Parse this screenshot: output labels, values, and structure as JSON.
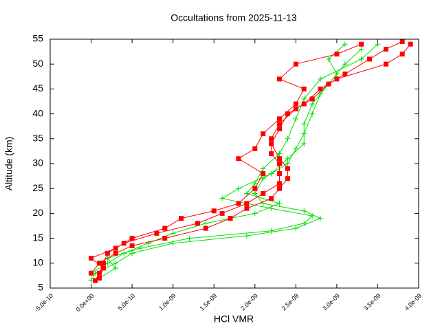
{
  "chart_data": {
    "type": "line",
    "title": "Occultations from 2025-11-13",
    "x_label": "HCl VMR",
    "y_label": "Altitude (km)",
    "xlim": [
      -5e-10,
      4e-09
    ],
    "xticks": [
      {
        "value": -5e-10,
        "label": "-5.0e-10"
      },
      {
        "value": 0,
        "label": "0.0e+00"
      },
      {
        "value": 5e-10,
        "label": "5.0e-10"
      },
      {
        "value": 1e-09,
        "label": "1.0e-09"
      },
      {
        "value": 1.5e-09,
        "label": "1.5e-09"
      },
      {
        "value": 2e-09,
        "label": "2.0e-09"
      },
      {
        "value": 2.5e-09,
        "label": "2.5e-09"
      },
      {
        "value": 3e-09,
        "label": "3.0e-09"
      },
      {
        "value": 3.5e-09,
        "label": "3.5e-09"
      },
      {
        "value": 4e-09,
        "label": "4.0e-09"
      }
    ],
    "ylim": [
      5,
      55
    ],
    "yticks": [
      5,
      10,
      15,
      20,
      25,
      30,
      35,
      40,
      45,
      50,
      55
    ],
    "series": [
      {
        "color": "#00e000",
        "marker": "plus",
        "x": [
          0,
          5e-11,
          3e-10,
          5e-10,
          1e-09,
          1.9e-09,
          2.5e-09,
          2.8e-09,
          2.6e-09,
          2.1e-09,
          2e-09,
          2.1e-09,
          2.4e-09,
          2.5e-09,
          2.6e-09,
          2.7e-09,
          2.8e-09,
          3e-09,
          2.9e-09,
          3.1e-09
        ],
        "values": [
          6.5,
          8,
          10,
          12,
          14,
          15.5,
          17,
          19,
          20.5,
          22,
          24,
          27,
          30,
          33,
          36,
          40,
          44,
          48,
          51,
          54
        ]
      },
      {
        "color": "#00e000",
        "marker": "plus",
        "x": [
          1e-10,
          3e-10,
          2e-10,
          6e-10,
          1.2e-09,
          2.2e-09,
          2.6e-09,
          2.7e-09,
          2.2e-09,
          1.6e-09,
          1.8e-09,
          2.2e-09,
          2.4e-09,
          2.6e-09,
          2.6e-09,
          2.7e-09,
          2.9e-09,
          3.1e-09,
          3.3e-09
        ],
        "values": [
          7,
          9,
          11,
          13,
          15,
          16.5,
          18,
          19.5,
          21,
          23,
          25,
          28,
          31,
          34,
          38,
          42,
          46,
          50,
          53
        ]
      },
      {
        "color": "#00e000",
        "marker": "plus",
        "x": [
          0,
          2e-10,
          4e-10,
          7e-10,
          1e-09,
          1.4e-09,
          2e-09,
          2.3e-09,
          1.9e-09,
          2e-09,
          2.1e-09,
          2.3e-09,
          2.4e-09,
          2.5e-09,
          2.6e-09,
          2.8e-09,
          3.3e-09,
          3.5e-09
        ],
        "values": [
          8,
          10,
          12,
          14,
          16,
          18,
          20,
          22,
          24,
          26,
          29,
          32,
          35,
          39,
          43,
          47,
          51,
          54
        ]
      },
      {
        "color": "#ff0000",
        "marker": "square",
        "x": [
          5e-11,
          1e-10,
          1.5e-10,
          2e-10,
          4e-10,
          8e-10,
          1.3e-09,
          1.6e-09,
          1.9e-09,
          2.1e-09,
          2.3e-09,
          2.3e-09,
          2.3e-09,
          2.2e-09,
          2.2e-09,
          2.3e-09,
          2.5e-09,
          2.7e-09,
          2.9e-09,
          3.1e-09,
          3.4e-09,
          3.6e-09,
          3.8e-09
        ],
        "values": [
          6.5,
          8,
          10,
          12,
          14,
          16,
          18,
          20,
          22,
          24,
          26,
          28,
          30,
          32,
          35,
          38,
          41,
          43,
          46,
          48,
          51,
          53,
          54.5
        ]
      },
      {
        "color": "#ff0000",
        "marker": "square",
        "x": [
          0,
          1e-10,
          3e-10,
          5e-10,
          9e-10,
          1.4e-09,
          1.7e-09,
          1.9e-09,
          2.2e-09,
          2.3e-09,
          2.4e-09,
          2.4e-09,
          2.3e-09,
          2.2e-09,
          2.3e-09,
          2.4e-09,
          2.6e-09,
          2.8e-09,
          3e-09,
          3.6e-09,
          3.8e-09,
          3.9e-09
        ],
        "values": [
          8,
          10,
          12,
          13.5,
          15,
          17,
          19,
          21,
          23,
          25,
          27,
          29,
          31,
          34,
          37,
          40,
          42,
          45,
          47,
          50,
          52,
          54
        ]
      },
      {
        "color": "#ff0000",
        "marker": "square",
        "x": [
          1e-10,
          1.5e-10,
          0,
          3e-10,
          5e-10,
          9e-10,
          1.1e-09,
          1.5e-09,
          1.8e-09,
          2e-09,
          2.1e-09,
          1.8e-09,
          2e-09,
          2.1e-09,
          2.3e-09,
          2.5e-09,
          2.6e-09,
          2.3e-09,
          2.5e-09,
          3e-09,
          3.3e-09
        ],
        "values": [
          7,
          9,
          11,
          13,
          15,
          17,
          19,
          20.5,
          22,
          25,
          28,
          31,
          33,
          36,
          39,
          42,
          45,
          47,
          50,
          52,
          54
        ]
      }
    ]
  }
}
